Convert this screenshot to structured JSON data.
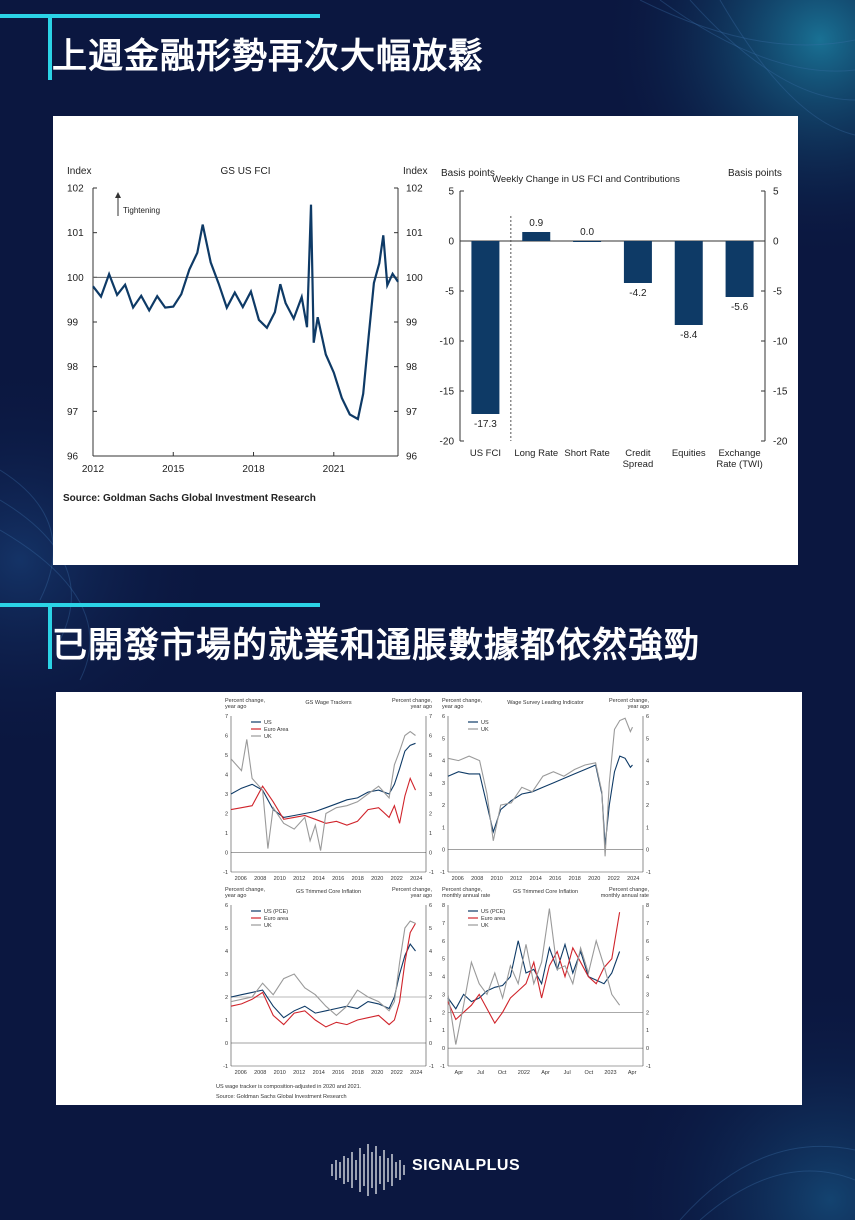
{
  "page": {
    "heading1": "上週金融形勢再次大幅放鬆",
    "heading2": "已開發市場的就業和通脹數據都依然強勁",
    "footer_brand": "SIGNALPLUS",
    "accent_color": "#2bd3e6",
    "background_color": "#0b1740"
  },
  "chart_data": [
    {
      "type": "line",
      "title": "GS US FCI",
      "ylabel_left": "Index",
      "ylabel_right": "Index",
      "annotation": "Tightening",
      "x_ticks": [
        "2012",
        "2015",
        "2018",
        "2021"
      ],
      "y_ticks": [
        96,
        97,
        98,
        99,
        100,
        101,
        102
      ],
      "xlim": [
        2012,
        2023.4
      ],
      "ylim": [
        96,
        102
      ],
      "reference_line": 100,
      "color": "#0e3a66",
      "source": "Source: Goldman Sachs Global Investment Research",
      "series": [
        {
          "x": [
            2012.0,
            2012.3,
            2012.6,
            2012.9,
            2013.2,
            2013.5,
            2013.8,
            2014.1,
            2014.4,
            2014.7,
            2015.0,
            2015.3,
            2015.6,
            2015.9,
            2016.1,
            2016.4,
            2016.7,
            2017.0,
            2017.3,
            2017.6,
            2017.9,
            2018.2,
            2018.5,
            2018.8,
            2019.0,
            2019.2,
            2019.5,
            2019.8,
            2020.0,
            2020.15,
            2020.25,
            2020.4,
            2020.7,
            2021.0,
            2021.3,
            2021.6,
            2021.9,
            2022.1,
            2022.3,
            2022.5,
            2022.7,
            2022.85,
            2023.0,
            2023.2,
            2023.4
          ],
          "y": [
            99.8,
            99.5,
            100.0,
            99.6,
            99.9,
            99.4,
            99.6,
            99.2,
            99.5,
            99.3,
            99.4,
            99.7,
            100.2,
            100.5,
            101.1,
            100.3,
            99.9,
            99.4,
            99.7,
            99.3,
            99.6,
            99.0,
            98.9,
            99.3,
            99.9,
            99.4,
            99.0,
            99.5,
            98.9,
            101.7,
            98.6,
            99.1,
            98.2,
            97.8,
            97.3,
            97.0,
            96.9,
            97.4,
            98.6,
            99.8,
            100.3,
            101.0,
            99.9,
            100.1,
            99.9
          ]
        }
      ]
    },
    {
      "type": "bar",
      "title": "Weekly Change  in US FCI and  Contributions",
      "ylabel_left": "Basis points",
      "ylabel_right": "Basis points",
      "categories": [
        "US FCI",
        "Long Rate",
        "Short Rate",
        "Credit Spread",
        "Equities",
        "Exchange Rate (TWI)"
      ],
      "values": [
        -17.3,
        0.9,
        0.0,
        -4.2,
        -8.4,
        -5.6
      ],
      "labels": [
        "-17.3",
        "0.9",
        "0.0",
        "-4.2",
        "-8.4",
        "-5.6"
      ],
      "y_ticks": [
        5,
        0,
        -5,
        -10,
        -15,
        -20
      ],
      "ylim": [
        -20,
        5
      ],
      "color": "#0e3a66"
    },
    {
      "type": "line",
      "title": "GS Wage Trackers",
      "ylabel_left": "Percent change, year ago",
      "ylabel_right": "Percent change, year ago",
      "x_ticks": [
        "2006",
        "2008",
        "2010",
        "2012",
        "2014",
        "2016",
        "2018",
        "2020",
        "2022",
        "2024"
      ],
      "y_ticks": [
        -1,
        0,
        1,
        2,
        3,
        4,
        5,
        6,
        7
      ],
      "xlim": [
        2005.5,
        2024
      ],
      "ylim": [
        -1,
        7
      ],
      "series": [
        {
          "name": "US",
          "color": "#0e3a66",
          "x": [
            2005.5,
            2006.5,
            2007.5,
            2008.5,
            2009.5,
            2010.5,
            2011.5,
            2012.5,
            2013.5,
            2014.5,
            2015.5,
            2016.5,
            2017.5,
            2018.5,
            2019.5,
            2020.5,
            2021.0,
            2021.5,
            2022.0,
            2022.5,
            2023.0
          ],
          "y": [
            3.0,
            3.3,
            3.5,
            3.2,
            2.2,
            1.8,
            1.9,
            2.0,
            2.1,
            2.3,
            2.5,
            2.7,
            2.8,
            3.1,
            3.2,
            3.0,
            3.5,
            4.3,
            5.2,
            5.5,
            5.6
          ]
        },
        {
          "name": "Euro Area",
          "color": "#d0242b",
          "x": [
            2005.5,
            2006.5,
            2007.5,
            2008.5,
            2009.5,
            2010.5,
            2011.5,
            2012.5,
            2013.5,
            2014.5,
            2015.5,
            2016.5,
            2017.5,
            2018.5,
            2019.5,
            2020.5,
            2021.0,
            2021.5,
            2022.0,
            2022.5,
            2023.0
          ],
          "y": [
            2.2,
            2.3,
            2.4,
            3.4,
            2.6,
            1.7,
            1.8,
            1.9,
            1.7,
            1.5,
            1.6,
            1.4,
            1.6,
            2.2,
            2.3,
            1.8,
            2.4,
            1.5,
            2.9,
            3.8,
            3.2
          ]
        },
        {
          "name": "UK",
          "color": "#9a9a9a",
          "x": [
            2005.5,
            2006.5,
            2007.0,
            2007.5,
            2008.5,
            2009.0,
            2009.5,
            2010.5,
            2011.5,
            2012.5,
            2013.0,
            2013.5,
            2014.0,
            2014.5,
            2015.5,
            2016.5,
            2017.5,
            2018.5,
            2019.5,
            2020.5,
            2021.0,
            2021.5,
            2022.0,
            2022.5,
            2023.0
          ],
          "y": [
            4.8,
            4.2,
            5.8,
            3.8,
            3.2,
            0.2,
            2.3,
            1.5,
            1.2,
            1.8,
            0.6,
            1.4,
            0.1,
            2.0,
            2.3,
            2.4,
            2.6,
            3.0,
            3.4,
            2.8,
            4.5,
            5.2,
            6.0,
            6.2,
            6.0
          ]
        }
      ]
    },
    {
      "type": "line",
      "title": "Wage Survey Leading Indicator",
      "ylabel_left": "Percent change, year ago",
      "ylabel_right": "Percent change, year ago",
      "x_ticks": [
        "2006",
        "2008",
        "2010",
        "2012",
        "2014",
        "2016",
        "2018",
        "2020",
        "2022",
        "2024"
      ],
      "y_ticks": [
        -1,
        0,
        1,
        2,
        3,
        4,
        5,
        6
      ],
      "xlim": [
        2005.5,
        2024
      ],
      "ylim": [
        -1,
        6
      ],
      "series": [
        {
          "name": "US",
          "color": "#0e3a66",
          "x": [
            2005.5,
            2006.5,
            2007.5,
            2008.5,
            2009.2,
            2009.8,
            2010.5,
            2011.5,
            2012.5,
            2013.5,
            2014.5,
            2015.5,
            2016.5,
            2017.5,
            2018.5,
            2019.5,
            2020.1,
            2020.4,
            2020.8,
            2021.3,
            2021.8,
            2022.3,
            2022.8,
            2023.0
          ],
          "y": [
            3.3,
            3.5,
            3.4,
            3.4,
            2.0,
            0.8,
            1.8,
            2.2,
            2.5,
            2.6,
            2.8,
            3.0,
            3.2,
            3.4,
            3.6,
            3.8,
            2.5,
            0.2,
            2.0,
            3.5,
            4.2,
            4.1,
            3.7,
            3.8
          ]
        },
        {
          "name": "UK",
          "color": "#9a9a9a",
          "x": [
            2005.5,
            2006.5,
            2007.5,
            2008.5,
            2009.2,
            2009.8,
            2010.5,
            2011.5,
            2012.5,
            2013.5,
            2014.5,
            2015.5,
            2016.5,
            2017.5,
            2018.5,
            2019.5,
            2020.1,
            2020.4,
            2020.8,
            2021.3,
            2021.8,
            2022.3,
            2022.8,
            2023.0
          ],
          "y": [
            4.1,
            4.0,
            4.2,
            4.0,
            2.5,
            0.4,
            2.0,
            2.1,
            2.8,
            2.6,
            3.3,
            3.5,
            3.3,
            3.6,
            3.8,
            3.9,
            2.6,
            -0.3,
            3.0,
            5.4,
            5.8,
            5.9,
            5.3,
            5.5
          ]
        }
      ]
    },
    {
      "type": "line",
      "title": "GS Trimmed Core Inflation",
      "ylabel_left": "Percent change, year ago",
      "ylabel_right": "Percent change, year ago",
      "x_ticks": [
        "2006",
        "2008",
        "2010",
        "2012",
        "2014",
        "2016",
        "2018",
        "2020",
        "2022",
        "2024"
      ],
      "y_ticks": [
        -1,
        0,
        1,
        2,
        3,
        4,
        5,
        6
      ],
      "xlim": [
        2005.5,
        2024
      ],
      "ylim": [
        -1,
        6
      ],
      "reference_line": 2,
      "series": [
        {
          "name": "US (PCE)",
          "color": "#0e3a66",
          "x": [
            2005.5,
            2006.5,
            2007.5,
            2008.5,
            2009.5,
            2010.5,
            2011.5,
            2012.5,
            2013.5,
            2014.5,
            2015.5,
            2016.5,
            2017.5,
            2018.5,
            2019.5,
            2020.5,
            2021.0,
            2021.5,
            2022.0,
            2022.5,
            2023.0
          ],
          "y": [
            2.0,
            2.1,
            2.2,
            2.3,
            1.6,
            1.1,
            1.4,
            1.6,
            1.3,
            1.4,
            1.5,
            1.6,
            1.5,
            1.8,
            1.7,
            1.5,
            2.0,
            3.0,
            3.8,
            4.3,
            4.0
          ]
        },
        {
          "name": "Euro area",
          "color": "#d0242b",
          "x": [
            2005.5,
            2006.5,
            2007.5,
            2008.5,
            2009.5,
            2010.5,
            2011.5,
            2012.5,
            2013.5,
            2014.5,
            2015.5,
            2016.5,
            2017.5,
            2018.5,
            2019.5,
            2020.5,
            2021.0,
            2021.5,
            2022.0,
            2022.5,
            2023.0
          ],
          "y": [
            1.6,
            1.7,
            1.9,
            2.2,
            1.2,
            0.8,
            1.3,
            1.4,
            1.0,
            0.7,
            0.9,
            0.8,
            1.0,
            1.1,
            1.2,
            0.8,
            1.0,
            1.8,
            3.5,
            4.8,
            5.2
          ]
        },
        {
          "name": "UK",
          "color": "#9a9a9a",
          "x": [
            2005.5,
            2006.5,
            2007.5,
            2008.5,
            2009.5,
            2010.5,
            2011.5,
            2012.5,
            2013.5,
            2014.5,
            2015.5,
            2016.5,
            2017.5,
            2018.5,
            2019.5,
            2020.5,
            2021.0,
            2021.5,
            2022.0,
            2022.5,
            2023.0
          ],
          "y": [
            1.8,
            1.9,
            2.0,
            2.6,
            2.1,
            2.8,
            3.0,
            2.4,
            2.1,
            1.6,
            1.2,
            1.6,
            2.3,
            2.0,
            1.8,
            1.4,
            1.8,
            3.5,
            5.0,
            5.3,
            5.2
          ]
        }
      ]
    },
    {
      "type": "line",
      "title": "GS Trimmed Core Inflation",
      "ylabel_left": "Percent change, monthly annual rate",
      "ylabel_right": "Percent change, monthly annual rate",
      "x_ticks": [
        "Apr",
        "Jul",
        "Oct",
        "2022",
        "Apr",
        "Jul",
        "Oct",
        "2023",
        "Apr"
      ],
      "y_ticks": [
        -1,
        0,
        1,
        2,
        3,
        4,
        5,
        6,
        7,
        8
      ],
      "xlim": [
        0,
        25
      ],
      "ylim": [
        -1,
        8
      ],
      "reference_line": 2,
      "series": [
        {
          "name": "US (PCE)",
          "color": "#0e3a66",
          "x": [
            0,
            1,
            2,
            3,
            4,
            5,
            6,
            7,
            8,
            9,
            10,
            11,
            12,
            13,
            14,
            15,
            16,
            17,
            18,
            19,
            20,
            21,
            22
          ],
          "y": [
            2.8,
            2.2,
            3.0,
            2.6,
            2.8,
            3.2,
            3.4,
            3.5,
            4.0,
            6.0,
            4.2,
            4.4,
            3.6,
            5.6,
            4.4,
            5.8,
            4.2,
            5.4,
            4.0,
            3.8,
            3.6,
            4.2,
            5.4
          ]
        },
        {
          "name": "Euro area",
          "color": "#d0242b",
          "x": [
            0,
            1,
            2,
            3,
            4,
            5,
            6,
            7,
            8,
            9,
            10,
            11,
            12,
            13,
            14,
            15,
            16,
            17,
            18,
            19,
            20,
            21,
            22
          ],
          "y": [
            2.6,
            1.6,
            2.0,
            2.4,
            3.0,
            2.2,
            1.4,
            2.0,
            2.8,
            3.2,
            3.6,
            4.8,
            2.8,
            4.6,
            5.4,
            4.0,
            5.6,
            4.8,
            4.0,
            3.6,
            4.5,
            5.0,
            7.6
          ]
        },
        {
          "name": "UK",
          "color": "#9a9a9a",
          "x": [
            0,
            1,
            2,
            3,
            4,
            5,
            6,
            7,
            8,
            9,
            10,
            11,
            12,
            13,
            14,
            15,
            16,
            17,
            18,
            19,
            20,
            21,
            22
          ],
          "y": [
            3.0,
            0.2,
            2.4,
            4.8,
            3.6,
            3.0,
            4.2,
            2.8,
            4.6,
            3.6,
            5.8,
            3.6,
            4.8,
            7.8,
            4.4,
            4.6,
            3.6,
            5.6,
            4.2,
            6.0,
            4.6,
            3.0,
            2.4
          ]
        }
      ]
    }
  ],
  "panel2_notes": {
    "note1": "US wage tracker is composition-adjusted in 2020 and 2021.",
    "note2": "Source: Goldman Sachs Global Investment Research"
  }
}
